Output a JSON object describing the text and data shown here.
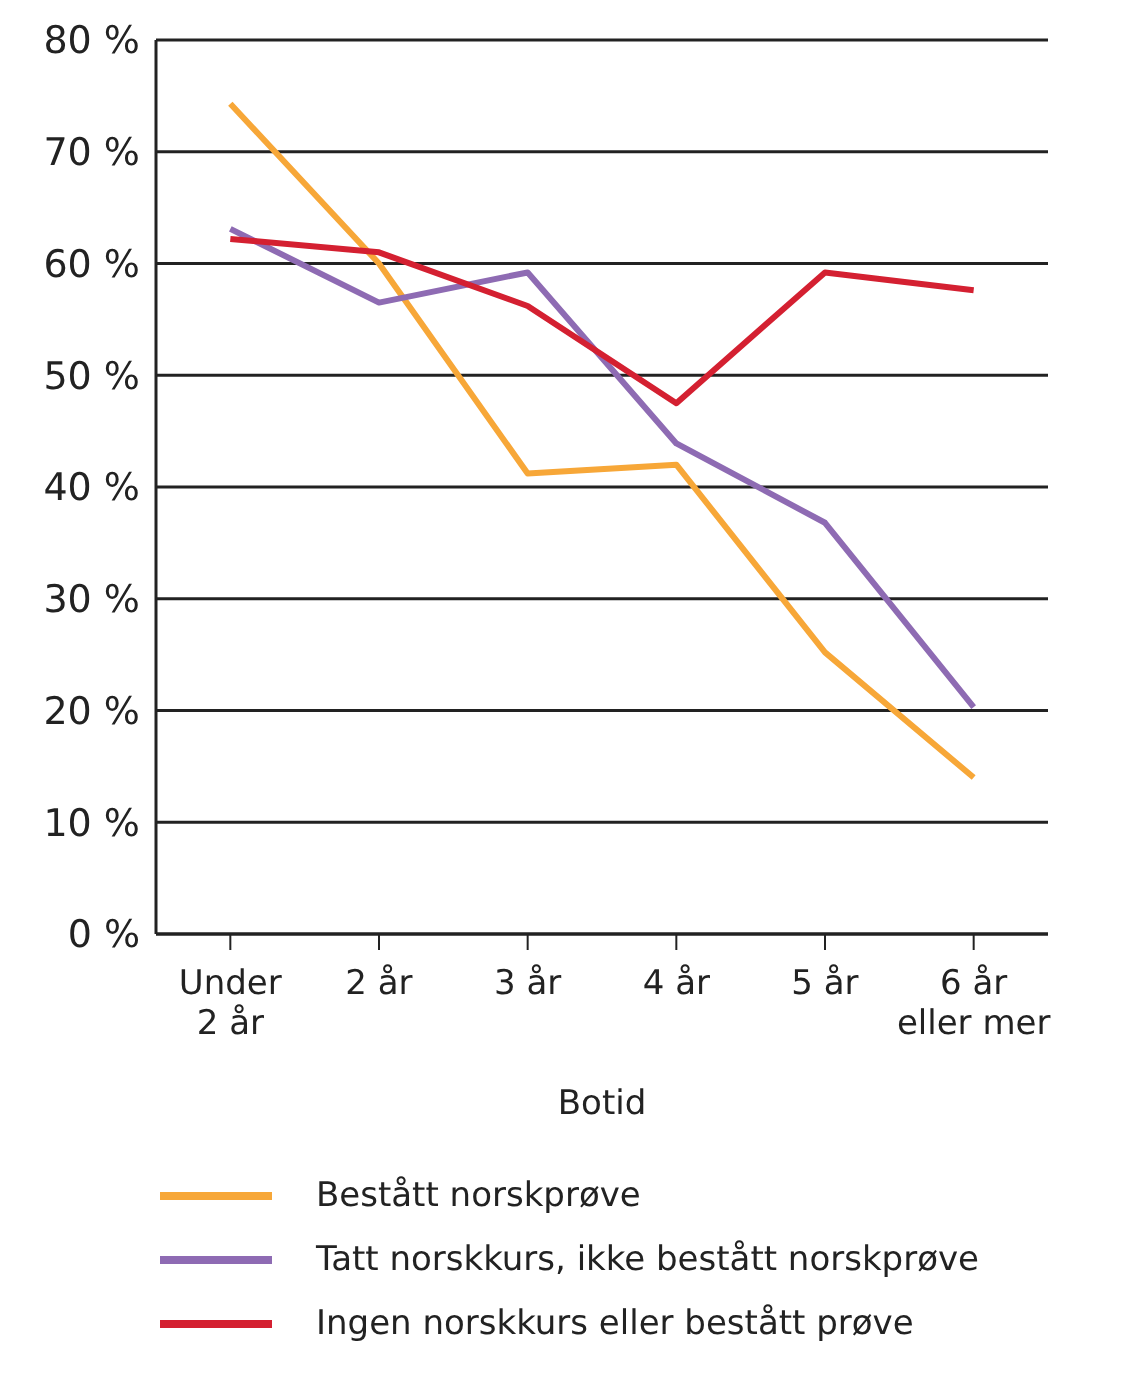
{
  "chart_data": {
    "type": "line",
    "xlabel": "Botid",
    "categories": [
      "Under\n2 år",
      "2 år",
      "3 år",
      "4 år",
      "5 år",
      "6 år\neller mer"
    ],
    "series": [
      {
        "name": "Bestått norskprøve",
        "color": "#f7a738",
        "values": [
          74.3,
          60,
          41.2,
          42,
          25.2,
          14
        ]
      },
      {
        "name": "Tatt norskkurs, ikke bestått norskprøve",
        "color": "#8e6bb3",
        "values": [
          63.1,
          56.5,
          59.2,
          43.9,
          36.8,
          20.3
        ]
      },
      {
        "name": "Ingen norskkurs eller bestått prøve",
        "color": "#d42031",
        "values": [
          62.2,
          61,
          56.2,
          47.5,
          59.2,
          57.6
        ]
      }
    ],
    "ylim": [
      0,
      80
    ],
    "yticks": [
      {
        "value": 0,
        "label": "0 %"
      },
      {
        "value": 10,
        "label": "10 %"
      },
      {
        "value": 20,
        "label": "20 %"
      },
      {
        "value": 30,
        "label": "30 %"
      },
      {
        "value": 40,
        "label": "40 %"
      },
      {
        "value": 50,
        "label": "50 %"
      },
      {
        "value": 60,
        "label": "60 %"
      },
      {
        "value": 70,
        "label": "70 %"
      },
      {
        "value": 80,
        "label": "80 %"
      }
    ],
    "grid": "y",
    "legend": "bottom",
    "marker": "none",
    "line_style": "solid"
  }
}
